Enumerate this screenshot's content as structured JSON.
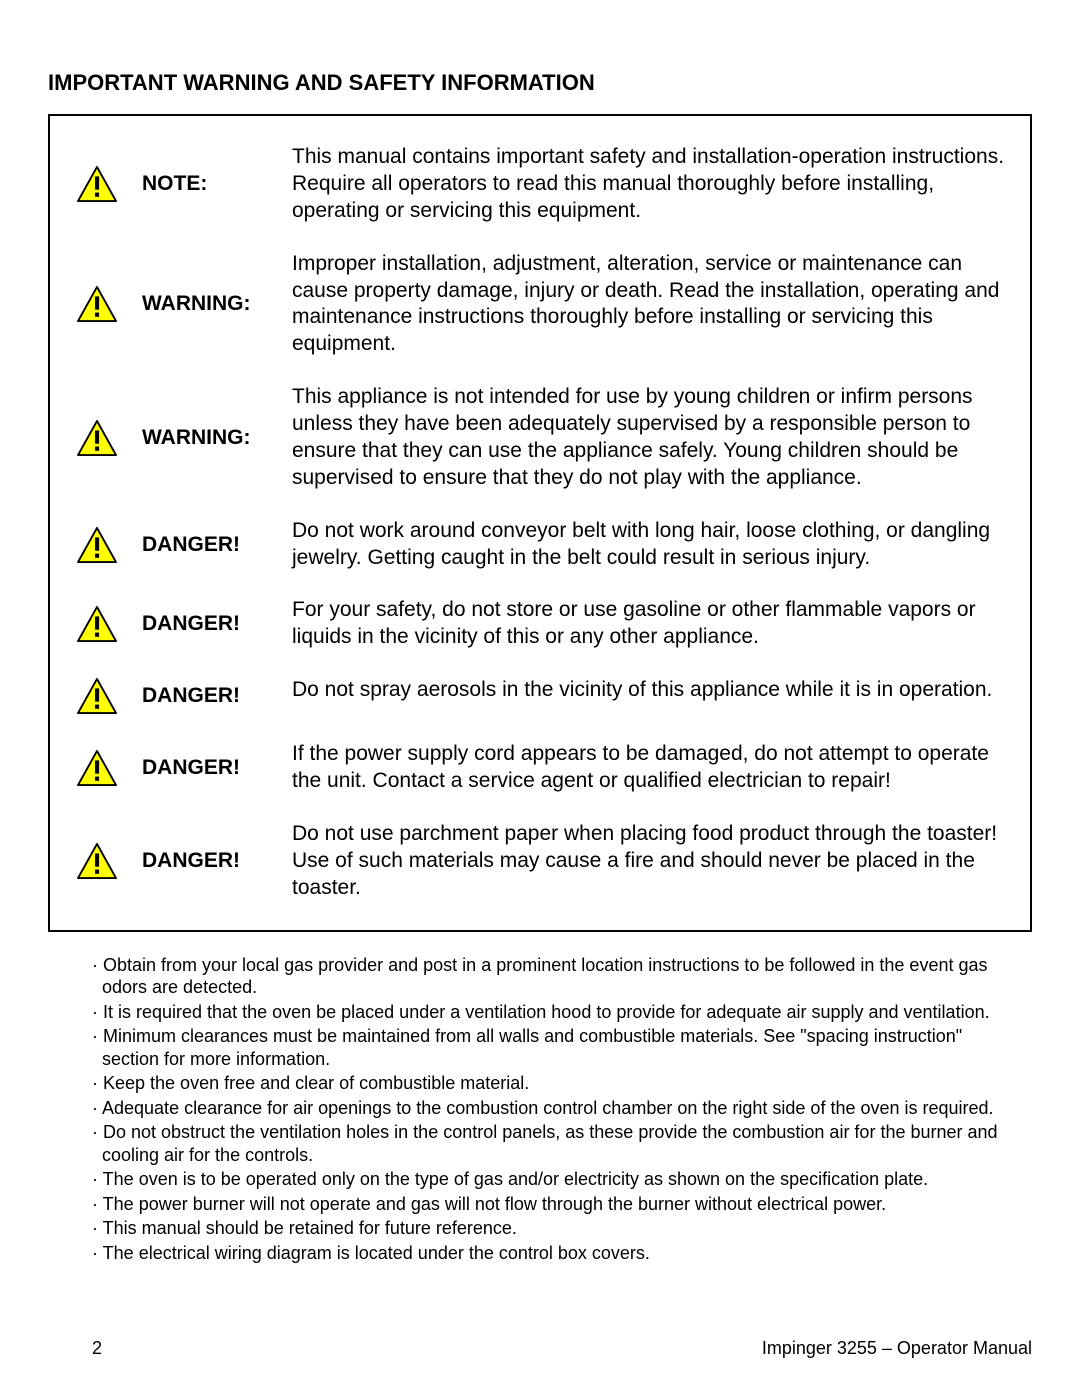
{
  "title": "IMPORTANT WARNING AND SAFETY INFORMATION",
  "icon": {
    "fill": "#ffff00",
    "stroke": "#000000"
  },
  "warnings": [
    {
      "label": "NOTE:",
      "message": "This manual contains important safety and installation-operation instructions. Require all operators to read this manual thoroughly before installing, operating or servicing this equipment."
    },
    {
      "label": "WARNING:",
      "message": "Improper installation, adjustment, alteration, service or maintenance can cause property damage, injury or death.  Read the installation, operating and maintenance instructions thoroughly before installing or servicing this equipment."
    },
    {
      "label": "WARNING:",
      "message": "This appliance is not intended for use by young children or infirm persons unless they have been adequately supervised by a responsible person to ensure that they can use the appliance safely.  Young children should be supervised to ensure that they do not play with the appliance."
    },
    {
      "label": "DANGER!",
      "message": "Do not work around conveyor belt with long hair, loose clothing, or dangling jewelry.  Getting caught in the belt could result in serious injury."
    },
    {
      "label": "DANGER!",
      "message": "For your safety, do not store or use gasoline or other flammable vapors or liquids in the vicinity of this or any other appliance."
    },
    {
      "label": "DANGER!",
      "message": "Do not spray aerosols in the vicinity of this appliance while it is in operation."
    },
    {
      "label": "DANGER!",
      "message": "If the power supply cord appears to be damaged, do not attempt to operate the unit.  Contact a service agent or qualified electrician to repair!"
    },
    {
      "label": "DANGER!",
      "message": "Do not use parchment paper when placing food product through the toaster! Use of such materials may cause a fire and should never be placed in the toaster."
    }
  ],
  "bullets": [
    "Obtain from your local gas provider and post in a prominent location instructions to be followed in the event gas odors are detected.",
    "It is required that the oven be placed under a ventilation hood to provide for adequate air supply and ventilation.",
    "Minimum clearances must be maintained from all walls and combustible materials. See \"spacing instruction\" section for more information.",
    "Keep the oven free and clear of combustible material.",
    "Adequate clearance for air openings to the combustion control chamber on the right side of the oven is required.",
    "Do not obstruct the ventilation holes in the control panels, as these provide the combustion air for the burner and cooling air for the controls.",
    "The oven is to be operated only on the type of gas and/or electricity as shown on the specification plate.",
    "The power burner will not operate and gas will not flow through the burner without electrical power.",
    "This manual should be retained for future reference.",
    "The electrical wiring diagram is located under the control box covers."
  ],
  "footer": {
    "page": "2",
    "doc": "Impinger 3255 – Operator Manual"
  }
}
